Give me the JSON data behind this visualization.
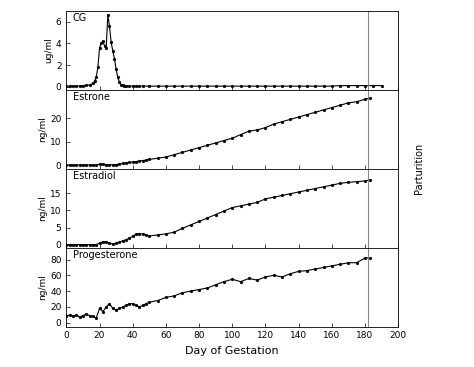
{
  "xlim": [
    0,
    200
  ],
  "xticks": [
    0,
    20,
    40,
    60,
    80,
    100,
    120,
    140,
    160,
    180,
    200
  ],
  "xlabel": "Day of Gestation",
  "parturition_x": 182,
  "panels": [
    {
      "label": "CG",
      "ylabel": "ug/ml",
      "ylim": [
        -0.3,
        7
      ],
      "yticks": [
        0,
        2,
        4,
        6
      ],
      "data_x": [
        0,
        2,
        4,
        6,
        8,
        10,
        12,
        14,
        16,
        17,
        18,
        19,
        20,
        21,
        22,
        23,
        24,
        25,
        26,
        27,
        28,
        29,
        30,
        31,
        32,
        33,
        34,
        35,
        36,
        38,
        40,
        42,
        44,
        46,
        50,
        55,
        60,
        65,
        70,
        75,
        80,
        85,
        90,
        95,
        100,
        105,
        110,
        115,
        120,
        125,
        130,
        135,
        140,
        145,
        150,
        155,
        160,
        165,
        170,
        175,
        180,
        185,
        190
      ],
      "data_y": [
        0.05,
        0.05,
        0.05,
        0.05,
        0.05,
        0.1,
        0.12,
        0.15,
        0.3,
        0.5,
        0.9,
        1.8,
        3.6,
        4.0,
        4.2,
        3.8,
        3.6,
        6.6,
        5.6,
        4.1,
        3.3,
        2.6,
        1.6,
        0.85,
        0.4,
        0.2,
        0.15,
        0.1,
        0.05,
        0.05,
        0.05,
        0.05,
        0.05,
        0.05,
        0.05,
        0.05,
        0.05,
        0.05,
        0.05,
        0.05,
        0.05,
        0.05,
        0.05,
        0.05,
        0.05,
        0.05,
        0.05,
        0.05,
        0.05,
        0.05,
        0.05,
        0.05,
        0.05,
        0.05,
        0.05,
        0.05,
        0.05,
        0.1,
        0.1,
        0.1,
        0.1,
        0.1,
        0.1
      ]
    },
    {
      "label": "Estrone",
      "ylabel": "ng/ml",
      "ylim": [
        -1.5,
        32
      ],
      "yticks": [
        0,
        10,
        20
      ],
      "data_x": [
        0,
        2,
        4,
        6,
        8,
        10,
        12,
        14,
        16,
        18,
        20,
        22,
        24,
        26,
        28,
        30,
        32,
        34,
        36,
        38,
        40,
        42,
        44,
        46,
        48,
        50,
        55,
        60,
        65,
        70,
        75,
        80,
        85,
        90,
        95,
        100,
        105,
        110,
        115,
        120,
        125,
        130,
        135,
        140,
        145,
        150,
        155,
        160,
        165,
        170,
        175,
        180,
        183
      ],
      "data_y": [
        0.1,
        0.1,
        0.1,
        0.1,
        0.1,
        0.1,
        0.1,
        0.1,
        0.1,
        0.1,
        0.5,
        0.5,
        0.3,
        0.2,
        0.2,
        0.3,
        0.5,
        0.8,
        1.0,
        1.2,
        1.4,
        1.6,
        1.8,
        2.0,
        2.2,
        2.5,
        3.0,
        3.5,
        4.5,
        5.5,
        6.5,
        7.5,
        8.5,
        9.5,
        10.5,
        11.5,
        13.0,
        14.5,
        15.0,
        16.0,
        17.5,
        18.5,
        19.5,
        20.5,
        21.5,
        22.5,
        23.5,
        24.5,
        25.5,
        26.5,
        27.0,
        28.0,
        28.5
      ]
    },
    {
      "label": "Estradiol",
      "ylabel": "ng/ml",
      "ylim": [
        -0.8,
        22
      ],
      "yticks": [
        0,
        5,
        10,
        15
      ],
      "data_x": [
        0,
        2,
        4,
        6,
        8,
        10,
        12,
        14,
        16,
        18,
        20,
        22,
        24,
        26,
        28,
        30,
        32,
        34,
        36,
        38,
        40,
        42,
        44,
        46,
        48,
        50,
        55,
        60,
        65,
        70,
        75,
        80,
        85,
        90,
        95,
        100,
        105,
        110,
        115,
        120,
        125,
        130,
        135,
        140,
        145,
        150,
        155,
        160,
        165,
        170,
        175,
        180,
        183
      ],
      "data_y": [
        0.1,
        0.1,
        0.1,
        0.1,
        0.1,
        0.1,
        0.1,
        0.1,
        0.1,
        0.1,
        0.5,
        0.9,
        0.9,
        0.5,
        0.3,
        0.5,
        0.8,
        1.2,
        1.5,
        2.0,
        2.5,
        3.1,
        3.3,
        3.1,
        2.9,
        2.6,
        2.9,
        3.2,
        3.7,
        4.8,
        5.8,
        6.8,
        7.8,
        8.8,
        9.8,
        10.8,
        11.3,
        11.8,
        12.3,
        13.3,
        13.8,
        14.3,
        14.8,
        15.3,
        15.8,
        16.3,
        16.8,
        17.3,
        17.8,
        18.1,
        18.3,
        18.5,
        18.8
      ]
    },
    {
      "label": "Progesterone",
      "ylabel": "ng/ml",
      "ylim": [
        -5,
        95
      ],
      "yticks": [
        0,
        20,
        40,
        60,
        80
      ],
      "data_x": [
        0,
        2,
        4,
        6,
        8,
        10,
        12,
        14,
        16,
        18,
        20,
        22,
        24,
        26,
        28,
        30,
        32,
        34,
        36,
        38,
        40,
        42,
        44,
        46,
        48,
        50,
        55,
        60,
        65,
        70,
        75,
        80,
        85,
        90,
        95,
        100,
        105,
        110,
        115,
        120,
        125,
        130,
        135,
        140,
        145,
        150,
        155,
        160,
        165,
        170,
        175,
        180,
        183
      ],
      "data_y": [
        8,
        10,
        8,
        10,
        7,
        9,
        11,
        9,
        8,
        6,
        18,
        14,
        20,
        24,
        18,
        16,
        18,
        20,
        22,
        24,
        24,
        22,
        20,
        22,
        24,
        26,
        28,
        32,
        34,
        38,
        40,
        42,
        44,
        48,
        52,
        55,
        52,
        56,
        54,
        58,
        60,
        58,
        62,
        65,
        66,
        68,
        70,
        72,
        74,
        76,
        76,
        82,
        82
      ]
    }
  ],
  "bg_color": "#f0f0f0",
  "line_color": "#000000",
  "parturition_color": "#888888"
}
